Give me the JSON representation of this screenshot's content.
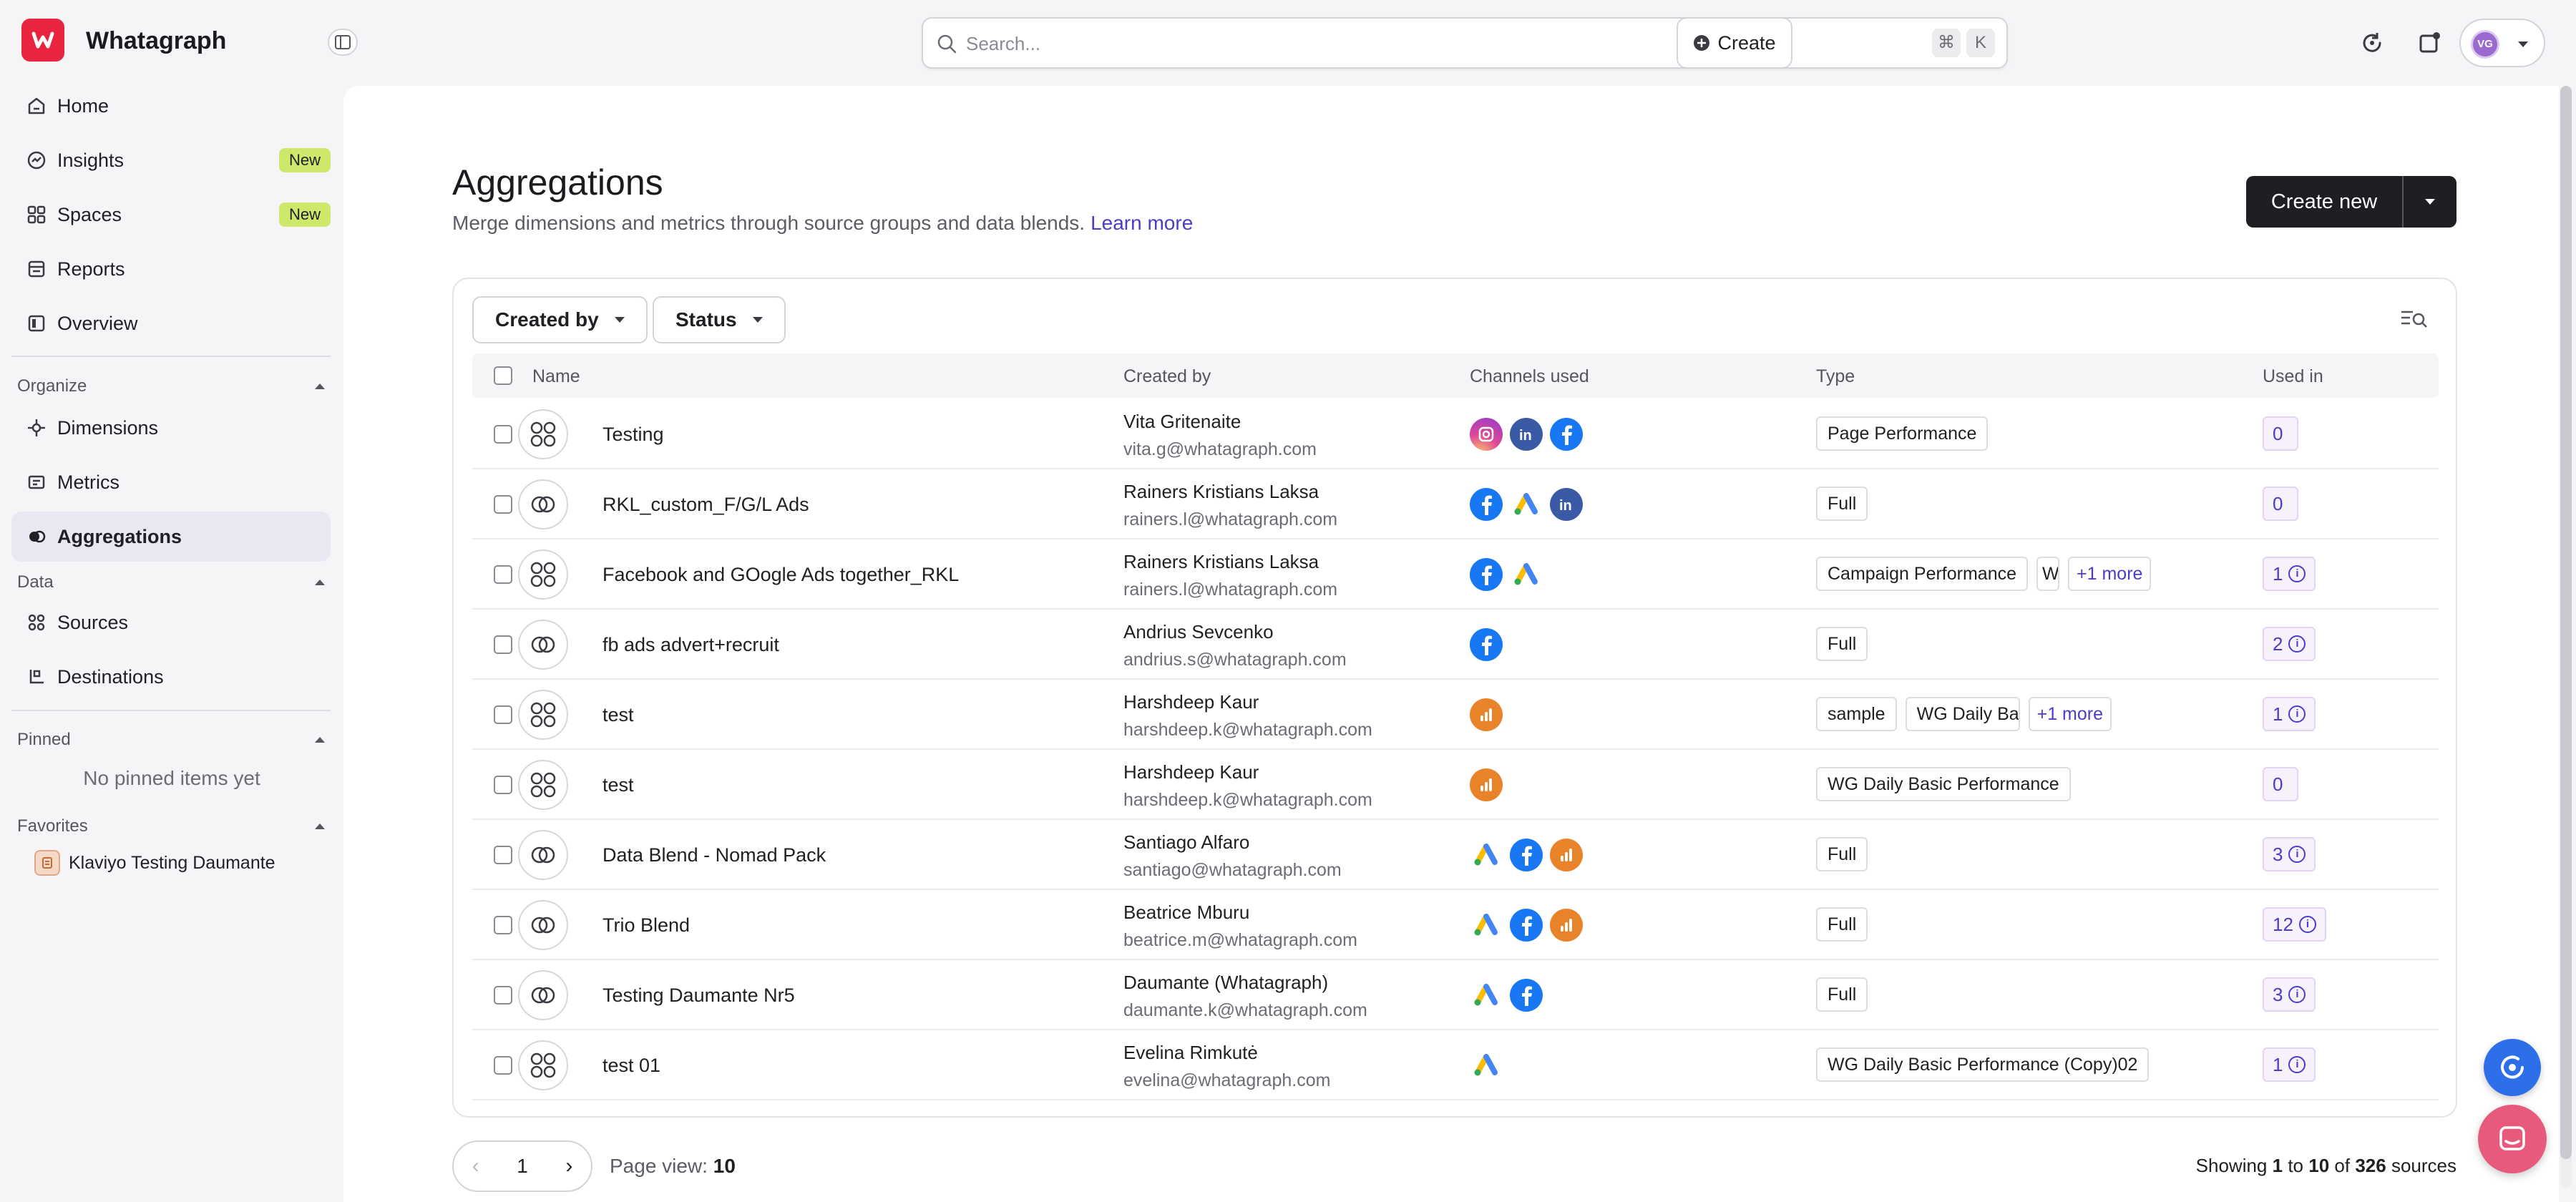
{
  "app": {
    "name": "Whatagraph",
    "logo_letter": "W",
    "brand_color": "#e8243e",
    "accent_color": "#4b3cc9"
  },
  "sidebar": {
    "nav": [
      {
        "label": "Home",
        "icon": "home-icon"
      },
      {
        "label": "Insights",
        "icon": "insights-icon",
        "badge": "New"
      },
      {
        "label": "Spaces",
        "icon": "spaces-icon",
        "badge": "New"
      },
      {
        "label": "Reports",
        "icon": "reports-icon"
      },
      {
        "label": "Overview",
        "icon": "overview-icon"
      }
    ],
    "organize": {
      "title": "Organize",
      "items": [
        {
          "label": "Dimensions",
          "icon": "dimensions-icon"
        },
        {
          "label": "Metrics",
          "icon": "metrics-icon"
        },
        {
          "label": "Aggregations",
          "icon": "aggregations-icon",
          "active": true
        }
      ]
    },
    "data": {
      "title": "Data",
      "items": [
        {
          "label": "Sources",
          "icon": "sources-icon"
        },
        {
          "label": "Destinations",
          "icon": "destinations-icon"
        }
      ]
    },
    "pinned": {
      "title": "Pinned",
      "empty": "No pinned items yet"
    },
    "favorites": {
      "title": "Favorites",
      "items": [
        {
          "label": "Klaviyo Testing Daumante"
        }
      ]
    }
  },
  "topbar": {
    "search_placeholder": "Search...",
    "shortcut": [
      "⌘",
      "K"
    ],
    "create_label": "Create",
    "avatar_initials": "VG"
  },
  "page": {
    "title": "Aggregations",
    "subtitle": "Merge dimensions and metrics through source groups and data blends.",
    "learn_more": "Learn more",
    "create_new": "Create new"
  },
  "filters": {
    "created_by": "Created by",
    "status": "Status"
  },
  "table": {
    "columns": {
      "name": "Name",
      "created_by": "Created by",
      "channels": "Channels used",
      "type": "Type",
      "used_in": "Used in"
    },
    "rows": [
      {
        "name": "Testing",
        "kind": "group",
        "creator": "Vita Gritenaite",
        "email": "vita.g@whatagraph.com",
        "channels": [
          "instagram",
          "linkedin",
          "facebook"
        ],
        "types": [
          "Page Performance"
        ],
        "more": "",
        "used": "0",
        "info": false
      },
      {
        "name": "RKL_custom_F/G/L Ads",
        "kind": "blend",
        "creator": "Rainers Kristians Laksa",
        "email": "rainers.l@whatagraph.com",
        "channels": [
          "facebook-ads",
          "google-ads",
          "linkedin-ads"
        ],
        "types": [
          "Full"
        ],
        "more": "",
        "used": "0",
        "info": false
      },
      {
        "name": "Facebook and GOogle Ads together_RKL",
        "kind": "group",
        "creator": "Rainers Kristians Laksa",
        "email": "rainers.l@whatagraph.com",
        "channels": [
          "facebook-ads",
          "google-ads"
        ],
        "types": [
          "Campaign Performance",
          "W"
        ],
        "more": "+1 more",
        "used": "1",
        "info": true
      },
      {
        "name": "fb ads advert+recruit",
        "kind": "blend",
        "creator": "Andrius Sevcenko",
        "email": "andrius.s@whatagraph.com",
        "channels": [
          "facebook-ads"
        ],
        "types": [
          "Full"
        ],
        "more": "",
        "used": "2",
        "info": true
      },
      {
        "name": "test",
        "kind": "group",
        "creator": "Harshdeep Kaur",
        "email": "harshdeep.k@whatagraph.com",
        "channels": [
          "google-analytics"
        ],
        "types": [
          "sample",
          "WG Daily Basic Pe"
        ],
        "more": "+1 more",
        "used": "1",
        "info": true
      },
      {
        "name": "test",
        "kind": "group",
        "creator": "Harshdeep Kaur",
        "email": "harshdeep.k@whatagraph.com",
        "channels": [
          "google-analytics"
        ],
        "types": [
          "WG Daily Basic Performance"
        ],
        "more": "",
        "used": "0",
        "info": false
      },
      {
        "name": "Data Blend - Nomad Pack",
        "kind": "blend",
        "creator": "Santiago Alfaro",
        "email": "santiago@whatagraph.com",
        "channels": [
          "google-ads",
          "facebook-ads",
          "google-analytics"
        ],
        "types": [
          "Full"
        ],
        "more": "",
        "used": "3",
        "info": true
      },
      {
        "name": "Trio Blend",
        "kind": "blend",
        "creator": "Beatrice Mburu",
        "email": "beatrice.m@whatagraph.com",
        "channels": [
          "google-ads",
          "facebook-ads",
          "google-analytics"
        ],
        "types": [
          "Full"
        ],
        "more": "",
        "used": "12",
        "info": true
      },
      {
        "name": "Testing Daumante Nr5",
        "kind": "blend",
        "creator": "Daumante (Whatagraph)",
        "email": "daumante.k@whatagraph.com",
        "channels": [
          "google-ads",
          "facebook-ads"
        ],
        "types": [
          "Full"
        ],
        "more": "",
        "used": "3",
        "info": true
      },
      {
        "name": "test 01",
        "kind": "group",
        "creator": "Evelina Rimkutė",
        "email": "evelina@whatagraph.com",
        "channels": [
          "google-ads"
        ],
        "types": [
          "WG Daily Basic Performance (Copy)02"
        ],
        "more": "",
        "used": "1",
        "info": true
      }
    ]
  },
  "pagination": {
    "prev": "‹",
    "page": "1",
    "next": "›",
    "page_view_label": "Page view:",
    "page_view": "10"
  },
  "showing": {
    "prefix": "Showing",
    "from": "1",
    "to_word": "to",
    "to": "10",
    "of_word": "of",
    "total": "326",
    "suffix": "sources"
  }
}
